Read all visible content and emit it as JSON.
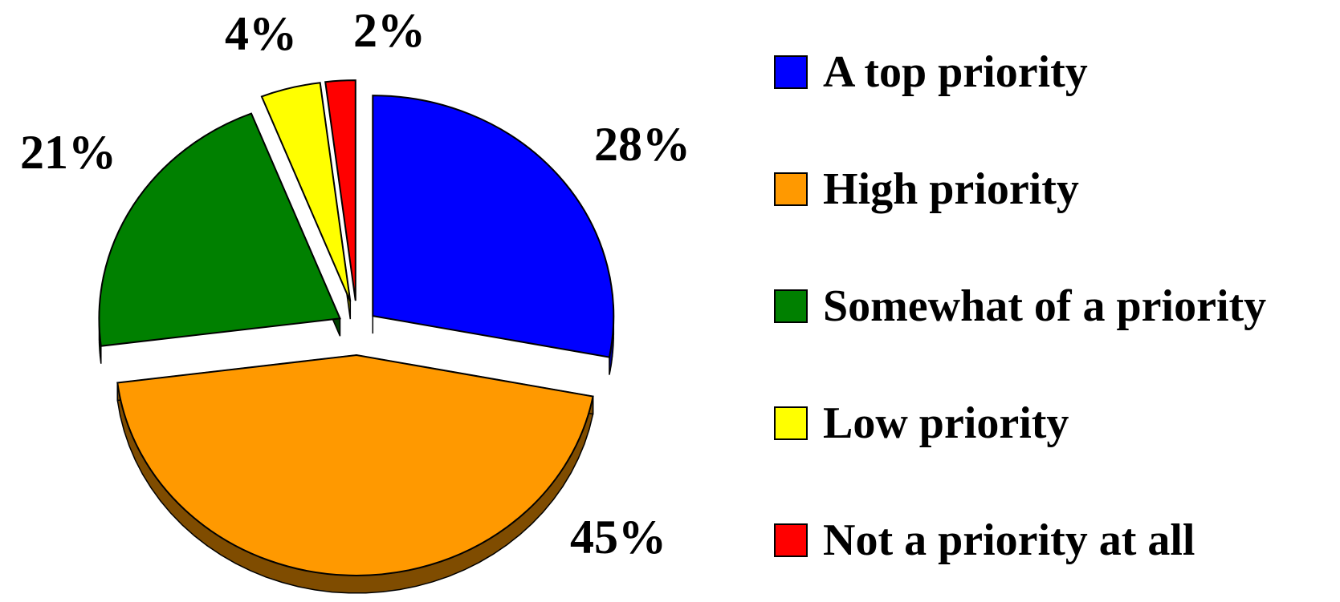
{
  "chart_data": {
    "type": "pie",
    "style": "3d-exploded",
    "legend_position": "right",
    "series": [
      {
        "name": "A top priority",
        "value": 28,
        "label": "28%",
        "color": "#0000FF",
        "side_color": "#00008B"
      },
      {
        "name": "High priority",
        "value": 45,
        "label": "45%",
        "color": "#FF9900",
        "side_color": "#7F4C00"
      },
      {
        "name": "Somewhat of a priority",
        "value": 21,
        "label": "21%",
        "color": "#008000",
        "side_color": "#004000"
      },
      {
        "name": "Low priority",
        "value": 4,
        "label": "4%",
        "color": "#FFFF00",
        "side_color": "#808000"
      },
      {
        "name": "Not a priority at all",
        "value": 2,
        "label": "2%",
        "color": "#FF0000",
        "side_color": "#800000"
      }
    ]
  }
}
